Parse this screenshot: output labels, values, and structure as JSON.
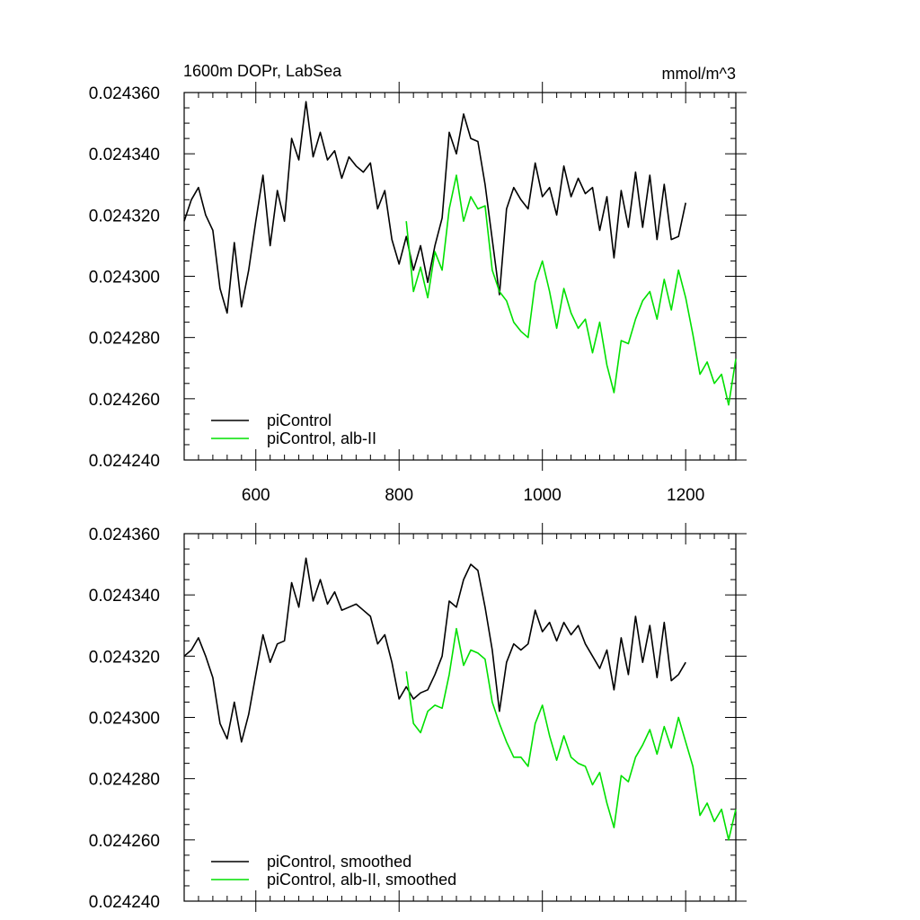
{
  "chart_data": [
    {
      "type": "line",
      "title": "1600m DOPr, LabSea",
      "units": "mmol/m^3",
      "xlim": [
        500,
        1270
      ],
      "ylim": [
        0.02424,
        0.02436
      ],
      "x_ticks": [
        600,
        800,
        1000,
        1200
      ],
      "x_tick_labels": [
        "600",
        "800",
        "1000",
        "1200"
      ],
      "y_ticks": [
        0.02424,
        0.02426,
        0.02428,
        0.0243,
        0.02432,
        0.02434,
        0.02436
      ],
      "y_tick_labels": [
        "0.024240",
        "0.024260",
        "0.024280",
        "0.024300",
        "0.024320",
        "0.024340",
        "0.024360"
      ],
      "legend_position": "bottom-left",
      "series": [
        {
          "name": "piControl",
          "color": "#000000",
          "x": [
            500,
            510,
            520,
            530,
            540,
            550,
            560,
            570,
            580,
            590,
            600,
            610,
            620,
            630,
            640,
            650,
            660,
            670,
            680,
            690,
            700,
            710,
            720,
            730,
            740,
            750,
            760,
            770,
            780,
            790,
            800,
            810,
            820,
            830,
            840,
            850,
            860,
            870,
            880,
            890,
            900,
            910,
            920,
            930,
            940,
            950,
            960,
            970,
            980,
            990,
            1000,
            1010,
            1020,
            1030,
            1040,
            1050,
            1060,
            1070,
            1080,
            1090,
            1100,
            1110,
            1120,
            1130,
            1140,
            1150,
            1160,
            1170,
            1180,
            1190,
            1200
          ],
          "y": [
            0.024318,
            0.024325,
            0.024329,
            0.02432,
            0.024315,
            0.024296,
            0.024288,
            0.024311,
            0.02429,
            0.024302,
            0.024318,
            0.024333,
            0.02431,
            0.024328,
            0.024318,
            0.024345,
            0.024338,
            0.024357,
            0.024339,
            0.024347,
            0.024338,
            0.024341,
            0.024332,
            0.024339,
            0.024336,
            0.024334,
            0.024337,
            0.024322,
            0.024328,
            0.024312,
            0.024304,
            0.024313,
            0.024302,
            0.02431,
            0.024298,
            0.02431,
            0.024319,
            0.024347,
            0.02434,
            0.024353,
            0.024345,
            0.024344,
            0.02433,
            0.024312,
            0.024294,
            0.024322,
            0.024329,
            0.024325,
            0.024322,
            0.024337,
            0.024326,
            0.024329,
            0.02432,
            0.024336,
            0.024326,
            0.024332,
            0.024327,
            0.024329,
            0.024315,
            0.024326,
            0.024306,
            0.024328,
            0.024316,
            0.024334,
            0.024316,
            0.024333,
            0.024312,
            0.02433,
            0.024312,
            0.024313,
            0.024324
          ]
        },
        {
          "name": "piControl, alb-II",
          "color": "#00e000",
          "x": [
            810,
            820,
            830,
            840,
            850,
            860,
            870,
            880,
            890,
            900,
            910,
            920,
            930,
            940,
            950,
            960,
            970,
            980,
            990,
            1000,
            1010,
            1020,
            1030,
            1040,
            1050,
            1060,
            1070,
            1080,
            1090,
            1100,
            1110,
            1120,
            1130,
            1140,
            1150,
            1160,
            1170,
            1180,
            1190,
            1200,
            1210,
            1220,
            1230,
            1240,
            1250,
            1260,
            1270
          ],
          "y": [
            0.024318,
            0.024295,
            0.024303,
            0.024293,
            0.024308,
            0.024302,
            0.024322,
            0.024333,
            0.024318,
            0.024326,
            0.024322,
            0.024323,
            0.024302,
            0.024295,
            0.024292,
            0.024285,
            0.024282,
            0.02428,
            0.024298,
            0.024305,
            0.024295,
            0.024283,
            0.024296,
            0.024288,
            0.024283,
            0.024286,
            0.024275,
            0.024285,
            0.024271,
            0.024262,
            0.024279,
            0.024278,
            0.024286,
            0.024292,
            0.024295,
            0.024286,
            0.024299,
            0.024289,
            0.024302,
            0.024293,
            0.024281,
            0.024268,
            0.024272,
            0.024265,
            0.024268,
            0.024258,
            0.024273
          ]
        }
      ]
    },
    {
      "type": "line",
      "title": "",
      "xlim": [
        500,
        1270
      ],
      "ylim": [
        0.02424,
        0.02436
      ],
      "y_ticks": [
        0.02424,
        0.02426,
        0.02428,
        0.0243,
        0.02432,
        0.02434,
        0.02436
      ],
      "y_tick_labels": [
        "0.024240",
        "0.024260",
        "0.024280",
        "0.024300",
        "0.024320",
        "0.024340",
        "0.024360"
      ],
      "legend_position": "bottom-left",
      "series": [
        {
          "name": "piControl, smoothed",
          "color": "#000000",
          "x": [
            500,
            510,
            520,
            530,
            540,
            550,
            560,
            570,
            580,
            590,
            600,
            610,
            620,
            630,
            640,
            650,
            660,
            670,
            680,
            690,
            700,
            710,
            720,
            730,
            740,
            750,
            760,
            770,
            780,
            790,
            800,
            810,
            820,
            830,
            840,
            850,
            860,
            870,
            880,
            890,
            900,
            910,
            920,
            930,
            940,
            950,
            960,
            970,
            980,
            990,
            1000,
            1010,
            1020,
            1030,
            1040,
            1050,
            1060,
            1070,
            1080,
            1090,
            1100,
            1110,
            1120,
            1130,
            1140,
            1150,
            1160,
            1170,
            1180,
            1190,
            1200
          ],
          "y": [
            0.02432,
            0.024322,
            0.024326,
            0.02432,
            0.024313,
            0.024298,
            0.024293,
            0.024305,
            0.024292,
            0.024301,
            0.024314,
            0.024327,
            0.024318,
            0.024324,
            0.024325,
            0.024344,
            0.024336,
            0.024352,
            0.024338,
            0.024345,
            0.024337,
            0.024341,
            0.024335,
            0.024336,
            0.024337,
            0.024335,
            0.024333,
            0.024324,
            0.024327,
            0.024318,
            0.024306,
            0.02431,
            0.024306,
            0.024308,
            0.024309,
            0.024314,
            0.02432,
            0.024338,
            0.024336,
            0.024345,
            0.02435,
            0.024348,
            0.024336,
            0.024322,
            0.024302,
            0.024318,
            0.024324,
            0.024322,
            0.024324,
            0.024335,
            0.024328,
            0.024331,
            0.024325,
            0.024331,
            0.024327,
            0.02433,
            0.024324,
            0.02432,
            0.024316,
            0.024322,
            0.024309,
            0.024326,
            0.024314,
            0.024333,
            0.024318,
            0.02433,
            0.024313,
            0.024331,
            0.024312,
            0.024314,
            0.024318
          ]
        },
        {
          "name": "piControl, alb-II, smoothed",
          "color": "#00e000",
          "x": [
            810,
            820,
            830,
            840,
            850,
            860,
            870,
            880,
            890,
            900,
            910,
            920,
            930,
            940,
            950,
            960,
            970,
            980,
            990,
            1000,
            1010,
            1020,
            1030,
            1040,
            1050,
            1060,
            1070,
            1080,
            1090,
            1100,
            1110,
            1120,
            1130,
            1140,
            1150,
            1160,
            1170,
            1180,
            1190,
            1200,
            1210,
            1220,
            1230,
            1240,
            1250,
            1260,
            1270
          ],
          "y": [
            0.024315,
            0.024298,
            0.024295,
            0.024302,
            0.024304,
            0.024303,
            0.024314,
            0.024329,
            0.024317,
            0.024322,
            0.024321,
            0.024319,
            0.024305,
            0.024298,
            0.024292,
            0.024287,
            0.024287,
            0.024284,
            0.024298,
            0.024304,
            0.024294,
            0.024286,
            0.024294,
            0.024287,
            0.024285,
            0.024284,
            0.024278,
            0.024282,
            0.024272,
            0.024264,
            0.024281,
            0.024279,
            0.024287,
            0.024291,
            0.024296,
            0.024288,
            0.024297,
            0.02429,
            0.0243,
            0.024292,
            0.024284,
            0.024268,
            0.024272,
            0.024266,
            0.02427,
            0.02426,
            0.02427
          ]
        }
      ]
    }
  ]
}
